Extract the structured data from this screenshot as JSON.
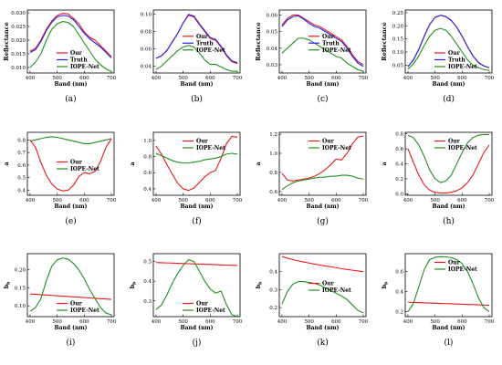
{
  "colors": {
    "Our": "#e8191b",
    "Truth": "#2424e6",
    "IOPE-Net": "#1f8f1f"
  },
  "chart_data": [
    {
      "type": "line",
      "caption": "(a)",
      "ylabel": "Reflectance",
      "xlabel": "Band (nm)",
      "xlim": [
        390,
        710
      ],
      "xticks": [
        400,
        500,
        600,
        700
      ],
      "ylim": [
        0.008,
        0.031
      ],
      "yticks": [
        0.01,
        0.015,
        0.02,
        0.025,
        0.03
      ],
      "ytick_labels": [
        "0.010",
        "0.015",
        "0.020",
        "0.025",
        "0.030"
      ],
      "legend": "bottom",
      "x": [
        400,
        420,
        440,
        460,
        480,
        500,
        520,
        540,
        560,
        580,
        600,
        620,
        640,
        660,
        680,
        700
      ],
      "series": [
        {
          "name": "Our",
          "values": [
            0.016,
            0.017,
            0.02,
            0.024,
            0.027,
            0.029,
            0.0298,
            0.0296,
            0.028,
            0.026,
            0.023,
            0.021,
            0.02,
            0.018,
            0.016,
            0.014
          ]
        },
        {
          "name": "Truth",
          "values": [
            0.0155,
            0.0165,
            0.0195,
            0.0235,
            0.0265,
            0.0285,
            0.029,
            0.0288,
            0.0275,
            0.025,
            0.0225,
            0.0205,
            0.019,
            0.0175,
            0.0155,
            0.0135
          ]
        },
        {
          "name": "IOPE-Net",
          "values": [
            0.01,
            0.012,
            0.015,
            0.02,
            0.024,
            0.026,
            0.0268,
            0.0265,
            0.025,
            0.022,
            0.019,
            0.016,
            0.013,
            0.011,
            0.0095,
            0.0085
          ]
        }
      ]
    },
    {
      "type": "line",
      "caption": "(b)",
      "ylabel": "",
      "xlabel": "Band (nm)",
      "xlim": [
        390,
        710
      ],
      "xticks": [
        400,
        500,
        600,
        700
      ],
      "ylim": [
        0.032,
        0.105
      ],
      "yticks": [
        0.04,
        0.06,
        0.08,
        0.1
      ],
      "ytick_labels": [
        "0.04",
        "0.06",
        "0.08",
        "0.10"
      ],
      "legend": "center",
      "x": [
        400,
        420,
        440,
        460,
        480,
        500,
        520,
        540,
        560,
        580,
        600,
        620,
        640,
        660,
        680,
        700
      ],
      "series": [
        {
          "name": "Our",
          "values": [
            0.049,
            0.052,
            0.058,
            0.068,
            0.078,
            0.09,
            0.099,
            0.097,
            0.088,
            0.08,
            0.072,
            0.07,
            0.062,
            0.052,
            0.045,
            0.043
          ]
        },
        {
          "name": "Truth",
          "values": [
            0.049,
            0.052,
            0.058,
            0.068,
            0.078,
            0.09,
            0.1,
            0.098,
            0.089,
            0.081,
            0.073,
            0.071,
            0.063,
            0.053,
            0.046,
            0.044
          ]
        },
        {
          "name": "IOPE-Net",
          "values": [
            0.036,
            0.04,
            0.046,
            0.052,
            0.058,
            0.062,
            0.064,
            0.062,
            0.055,
            0.047,
            0.042,
            0.042,
            0.039,
            0.036,
            0.034,
            0.034
          ]
        }
      ]
    },
    {
      "type": "line",
      "caption": "(c)",
      "ylabel": "Reflectance",
      "xlabel": "Band (nm)",
      "xlim": [
        390,
        710
      ],
      "xticks": [
        400,
        500,
        600,
        700
      ],
      "ylim": [
        0.025,
        0.063
      ],
      "yticks": [
        0.03,
        0.04,
        0.05,
        0.06
      ],
      "ytick_labels": [
        "0.03",
        "0.04",
        "0.05",
        "0.06"
      ],
      "legend": "center",
      "x": [
        400,
        420,
        440,
        460,
        480,
        500,
        520,
        540,
        560,
        580,
        600,
        620,
        640,
        660,
        680,
        700
      ],
      "series": [
        {
          "name": "Our",
          "values": [
            0.054,
            0.058,
            0.06,
            0.06,
            0.058,
            0.056,
            0.054,
            0.053,
            0.051,
            0.049,
            0.047,
            0.045,
            0.041,
            0.036,
            0.032,
            0.03
          ]
        },
        {
          "name": "Truth",
          "values": [
            0.053,
            0.057,
            0.059,
            0.0595,
            0.0575,
            0.055,
            0.053,
            0.052,
            0.05,
            0.048,
            0.046,
            0.044,
            0.04,
            0.035,
            0.031,
            0.029
          ]
        },
        {
          "name": "IOPE-Net",
          "values": [
            0.037,
            0.04,
            0.043,
            0.046,
            0.046,
            0.045,
            0.043,
            0.041,
            0.039,
            0.037,
            0.035,
            0.034,
            0.031,
            0.029,
            0.027,
            0.026
          ]
        }
      ]
    },
    {
      "type": "line",
      "caption": "(d)",
      "ylabel": "Reflectance",
      "xlabel": "Band (nm)",
      "xlim": [
        390,
        710
      ],
      "xticks": [
        400,
        500,
        600,
        700
      ],
      "ylim": [
        0.02,
        0.26
      ],
      "yticks": [
        0.05,
        0.1,
        0.15,
        0.2,
        0.25
      ],
      "ytick_labels": [
        "0.05",
        "0.10",
        "0.15",
        "0.20",
        "0.25"
      ],
      "legend": "bottom",
      "x": [
        400,
        420,
        440,
        460,
        480,
        500,
        520,
        540,
        560,
        580,
        600,
        620,
        640,
        660,
        680,
        700
      ],
      "series": [
        {
          "name": "Our",
          "values": [
            0.045,
            0.07,
            0.11,
            0.16,
            0.205,
            0.232,
            0.24,
            0.235,
            0.22,
            0.195,
            0.16,
            0.12,
            0.085,
            0.06,
            0.047,
            0.04
          ]
        },
        {
          "name": "Truth",
          "values": [
            0.045,
            0.07,
            0.11,
            0.16,
            0.205,
            0.232,
            0.24,
            0.235,
            0.22,
            0.195,
            0.16,
            0.12,
            0.085,
            0.06,
            0.047,
            0.04
          ]
        },
        {
          "name": "IOPE-Net",
          "values": [
            0.035,
            0.055,
            0.085,
            0.125,
            0.16,
            0.183,
            0.19,
            0.183,
            0.16,
            0.13,
            0.1,
            0.07,
            0.05,
            0.04,
            0.033,
            0.03
          ]
        }
      ]
    },
    {
      "type": "line",
      "caption": "(e)",
      "ylabel": "a",
      "xlabel": "Band (nm)",
      "xlim": [
        390,
        710
      ],
      "xticks": [
        400,
        500,
        600,
        700
      ],
      "ylim": [
        0.36,
        0.86
      ],
      "yticks": [
        0.4,
        0.5,
        0.6,
        0.7,
        0.8
      ],
      "ytick_labels": [
        "0.4",
        "0.5",
        "0.6",
        "0.7",
        "0.8"
      ],
      "legend": "center",
      "x": [
        400,
        420,
        440,
        460,
        480,
        500,
        520,
        540,
        560,
        580,
        600,
        620,
        640,
        660,
        680,
        700
      ],
      "series": [
        {
          "name": "Our",
          "values": [
            0.8,
            0.74,
            0.62,
            0.52,
            0.45,
            0.41,
            0.395,
            0.4,
            0.44,
            0.51,
            0.54,
            0.53,
            0.55,
            0.63,
            0.74,
            0.81
          ]
        },
        {
          "name": "IOPE-Net",
          "values": [
            0.79,
            0.8,
            0.81,
            0.82,
            0.825,
            0.82,
            0.81,
            0.8,
            0.79,
            0.78,
            0.77,
            0.77,
            0.78,
            0.79,
            0.8,
            0.81
          ]
        }
      ]
    },
    {
      "type": "line",
      "caption": "(f)",
      "ylabel": "a",
      "xlabel": "Band (nm)",
      "xlim": [
        390,
        710
      ],
      "xticks": [
        400,
        500,
        600,
        700
      ],
      "ylim": [
        0.32,
        1.1
      ],
      "yticks": [
        0.4,
        0.6,
        0.8,
        1.0
      ],
      "ytick_labels": [
        "0.4",
        "0.6",
        "0.8",
        "1.0"
      ],
      "legend": "top",
      "x": [
        400,
        420,
        440,
        460,
        480,
        500,
        520,
        540,
        560,
        580,
        600,
        620,
        640,
        660,
        680,
        700
      ],
      "series": [
        {
          "name": "Our",
          "values": [
            0.93,
            0.83,
            0.7,
            0.58,
            0.47,
            0.4,
            0.38,
            0.41,
            0.48,
            0.55,
            0.6,
            0.63,
            0.78,
            0.96,
            1.05,
            1.04
          ]
        },
        {
          "name": "IOPE-Net",
          "values": [
            0.84,
            0.81,
            0.78,
            0.75,
            0.73,
            0.72,
            0.72,
            0.73,
            0.74,
            0.76,
            0.77,
            0.78,
            0.8,
            0.83,
            0.84,
            0.83
          ]
        }
      ]
    },
    {
      "type": "line",
      "caption": "(g)",
      "ylabel": "a",
      "xlabel": "Band (nm)",
      "xlim": [
        390,
        710
      ],
      "xticks": [
        400,
        500,
        600,
        700
      ],
      "ylim": [
        0.56,
        1.22
      ],
      "yticks": [
        0.6,
        0.8,
        1.0,
        1.2
      ],
      "ytick_labels": [
        "0.6",
        "0.8",
        "1.0",
        "1.2"
      ],
      "legend": "top",
      "x": [
        400,
        420,
        440,
        460,
        480,
        500,
        520,
        540,
        560,
        580,
        600,
        620,
        640,
        660,
        680,
        700
      ],
      "series": [
        {
          "name": "Our",
          "values": [
            0.79,
            0.72,
            0.71,
            0.72,
            0.73,
            0.74,
            0.76,
            0.79,
            0.83,
            0.88,
            0.94,
            0.93,
            1.0,
            1.1,
            1.17,
            1.18
          ]
        },
        {
          "name": "IOPE-Net",
          "values": [
            0.62,
            0.66,
            0.69,
            0.71,
            0.72,
            0.73,
            0.74,
            0.75,
            0.75,
            0.76,
            0.76,
            0.77,
            0.77,
            0.76,
            0.74,
            0.73
          ]
        }
      ]
    },
    {
      "type": "line",
      "caption": "(h)",
      "ylabel": "a",
      "xlabel": "Band (nm)",
      "xlim": [
        390,
        710
      ],
      "xticks": [
        400,
        500,
        600,
        700
      ],
      "ylim": [
        -0.02,
        0.82
      ],
      "yticks": [
        0.0,
        0.2,
        0.4,
        0.6,
        0.8
      ],
      "ytick_labels": [
        "0.0",
        "0.2",
        "0.4",
        "0.6",
        "0.8"
      ],
      "legend": "top",
      "x": [
        400,
        420,
        440,
        460,
        480,
        500,
        520,
        540,
        560,
        580,
        600,
        620,
        640,
        660,
        680,
        700
      ],
      "series": [
        {
          "name": "Our",
          "values": [
            0.6,
            0.42,
            0.25,
            0.12,
            0.05,
            0.02,
            0.01,
            0.01,
            0.02,
            0.04,
            0.08,
            0.15,
            0.25,
            0.4,
            0.55,
            0.65
          ]
        },
        {
          "name": "IOPE-Net",
          "values": [
            0.78,
            0.75,
            0.65,
            0.5,
            0.32,
            0.2,
            0.15,
            0.17,
            0.25,
            0.4,
            0.55,
            0.68,
            0.75,
            0.78,
            0.79,
            0.79
          ]
        }
      ]
    },
    {
      "type": "line",
      "caption": "(i)",
      "ylabel": "b_b",
      "xlabel": "Band (nm)",
      "xlim": [
        390,
        710
      ],
      "xticks": [
        400,
        500,
        600,
        700
      ],
      "ylim": [
        0.07,
        0.245
      ],
      "yticks": [
        0.1,
        0.15,
        0.2
      ],
      "ytick_labels": [
        "0.10",
        "0.15",
        "0.20"
      ],
      "legend": "bottom",
      "x": [
        400,
        420,
        440,
        460,
        480,
        500,
        520,
        540,
        560,
        580,
        600,
        620,
        640,
        660,
        680,
        700
      ],
      "series": [
        {
          "name": "Our",
          "values": [
            0.133,
            0.132,
            0.131,
            0.13,
            0.129,
            0.128,
            0.127,
            0.126,
            0.125,
            0.124,
            0.123,
            0.122,
            0.121,
            0.12,
            0.119,
            0.118
          ]
        },
        {
          "name": "IOPE-Net",
          "values": [
            0.085,
            0.095,
            0.12,
            0.17,
            0.21,
            0.228,
            0.233,
            0.23,
            0.218,
            0.2,
            0.175,
            0.145,
            0.12,
            0.095,
            0.08,
            0.075
          ]
        }
      ]
    },
    {
      "type": "line",
      "caption": "(j)",
      "ylabel": "b_b",
      "xlabel": "Band (nm)",
      "xlim": [
        390,
        710
      ],
      "xticks": [
        400,
        500,
        600,
        700
      ],
      "ylim": [
        0.22,
        0.54
      ],
      "yticks": [
        0.3,
        0.4,
        0.5
      ],
      "ytick_labels": [
        "0.3",
        "0.4",
        "0.5"
      ],
      "legend": "bottom",
      "x": [
        400,
        420,
        440,
        460,
        480,
        500,
        520,
        540,
        560,
        580,
        600,
        620,
        640,
        660,
        680,
        700
      ],
      "series": [
        {
          "name": "Our",
          "values": [
            0.495,
            0.494,
            0.493,
            0.492,
            0.491,
            0.49,
            0.489,
            0.488,
            0.487,
            0.486,
            0.485,
            0.484,
            0.483,
            0.482,
            0.481,
            0.48
          ]
        },
        {
          "name": "IOPE-Net",
          "values": [
            0.255,
            0.28,
            0.33,
            0.39,
            0.44,
            0.48,
            0.51,
            0.5,
            0.45,
            0.4,
            0.36,
            0.34,
            0.35,
            0.28,
            0.23,
            0.22
          ]
        }
      ]
    },
    {
      "type": "line",
      "caption": "(k)",
      "ylabel": "b_b",
      "xlabel": "Band (nm)",
      "xlim": [
        390,
        710
      ],
      "xticks": [
        400,
        500,
        600,
        700
      ],
      "ylim": [
        0.15,
        0.5
      ],
      "yticks": [
        0.2,
        0.3,
        0.4
      ],
      "ytick_labels": [
        "0.2",
        "0.3",
        "0.4"
      ],
      "legend": "center",
      "x": [
        400,
        420,
        440,
        460,
        480,
        500,
        520,
        540,
        560,
        580,
        600,
        620,
        640,
        660,
        680,
        700
      ],
      "series": [
        {
          "name": "Our",
          "values": [
            0.485,
            0.475,
            0.467,
            0.46,
            0.454,
            0.448,
            0.442,
            0.437,
            0.432,
            0.427,
            0.422,
            0.417,
            0.412,
            0.408,
            0.404,
            0.4
          ]
        },
        {
          "name": "IOPE-Net",
          "values": [
            0.22,
            0.29,
            0.33,
            0.345,
            0.345,
            0.34,
            0.335,
            0.325,
            0.31,
            0.295,
            0.28,
            0.265,
            0.245,
            0.215,
            0.185,
            0.17
          ]
        }
      ]
    },
    {
      "type": "line",
      "caption": "(l)",
      "ylabel": "b_b",
      "xlabel": "Band (nm)",
      "xlim": [
        390,
        710
      ],
      "xticks": [
        400,
        500,
        600,
        700
      ],
      "ylim": [
        0.15,
        0.78
      ],
      "yticks": [
        0.2,
        0.4,
        0.6
      ],
      "ytick_labels": [
        "0.2",
        "0.4",
        "0.6"
      ],
      "legend": "top",
      "x": [
        400,
        420,
        440,
        460,
        480,
        500,
        520,
        540,
        560,
        580,
        600,
        620,
        640,
        660,
        680,
        700
      ],
      "series": [
        {
          "name": "Our",
          "values": [
            0.295,
            0.292,
            0.29,
            0.288,
            0.286,
            0.284,
            0.282,
            0.28,
            0.278,
            0.276,
            0.274,
            0.272,
            0.27,
            0.268,
            0.266,
            0.264
          ]
        },
        {
          "name": "IOPE-Net",
          "values": [
            0.2,
            0.28,
            0.45,
            0.62,
            0.72,
            0.745,
            0.75,
            0.748,
            0.74,
            0.72,
            0.68,
            0.6,
            0.48,
            0.34,
            0.24,
            0.2
          ]
        }
      ]
    }
  ]
}
